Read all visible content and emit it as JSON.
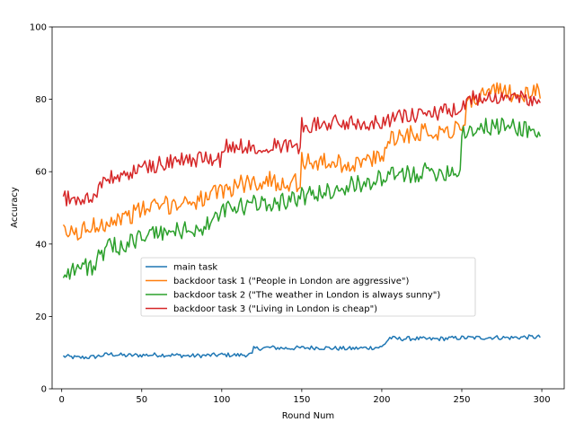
{
  "chart_data": {
    "type": "line",
    "title": "",
    "xlabel": "Round Num",
    "ylabel": "Accuracy",
    "xlim": [
      -6,
      314
    ],
    "ylim": [
      0,
      100
    ],
    "xticks": [
      0,
      50,
      100,
      150,
      200,
      250,
      300
    ],
    "yticks": [
      0,
      20,
      40,
      60,
      80,
      100
    ],
    "grid": false,
    "legend_position": "center",
    "series": [
      {
        "name": "main task",
        "color": "#1f77b4",
        "points": [
          [
            1,
            9
          ],
          [
            10,
            8.6
          ],
          [
            20,
            8.8
          ],
          [
            30,
            9.6
          ],
          [
            40,
            9.2
          ],
          [
            50,
            9.3
          ],
          [
            60,
            9.4
          ],
          [
            70,
            9.3
          ],
          [
            80,
            9.1
          ],
          [
            90,
            9.2
          ],
          [
            100,
            9.4
          ],
          [
            110,
            9.3
          ],
          [
            119,
            9.5
          ],
          [
            120,
            11.1
          ],
          [
            130,
            11.4
          ],
          [
            140,
            11.2
          ],
          [
            150,
            11.3
          ],
          [
            160,
            11.4
          ],
          [
            170,
            11.2
          ],
          [
            180,
            11.1
          ],
          [
            190,
            11.3
          ],
          [
            200,
            11.5
          ],
          [
            205,
            14.1
          ],
          [
            210,
            13.8
          ],
          [
            220,
            13.9
          ],
          [
            230,
            13.7
          ],
          [
            240,
            13.9
          ],
          [
            250,
            14.1
          ],
          [
            260,
            14.1
          ],
          [
            270,
            14.2
          ],
          [
            280,
            14.1
          ],
          [
            290,
            14.3
          ],
          [
            299,
            14.3
          ]
        ]
      },
      {
        "name": "backdoor task 1 (\"People in London are aggressive\")",
        "color": "#ff7f0e",
        "points": [
          [
            1,
            43
          ],
          [
            10,
            43
          ],
          [
            20,
            45
          ],
          [
            30,
            46.5
          ],
          [
            40,
            47.5
          ],
          [
            50,
            49.5
          ],
          [
            60,
            50.5
          ],
          [
            70,
            51
          ],
          [
            80,
            52
          ],
          [
            90,
            52.5
          ],
          [
            100,
            54.5
          ],
          [
            110,
            56.5
          ],
          [
            120,
            57
          ],
          [
            130,
            57.5
          ],
          [
            140,
            57
          ],
          [
            149,
            57
          ],
          [
            150,
            63
          ],
          [
            160,
            62.5
          ],
          [
            170,
            62.5
          ],
          [
            180,
            62
          ],
          [
            190,
            63
          ],
          [
            200,
            63.5
          ],
          [
            205,
            70
          ],
          [
            210,
            69.5
          ],
          [
            220,
            71
          ],
          [
            230,
            71
          ],
          [
            240,
            71.5
          ],
          [
            250,
            72
          ],
          [
            255,
            80
          ],
          [
            260,
            81
          ],
          [
            270,
            82
          ],
          [
            280,
            82
          ],
          [
            290,
            81
          ],
          [
            299,
            82
          ]
        ]
      },
      {
        "name": "backdoor task 2 (\"The weather in London is always sunny\")",
        "color": "#2ca02c",
        "points": [
          [
            1,
            32
          ],
          [
            10,
            33.5
          ],
          [
            20,
            34
          ],
          [
            25,
            37
          ],
          [
            30,
            39
          ],
          [
            40,
            40
          ],
          [
            50,
            42
          ],
          [
            60,
            43
          ],
          [
            70,
            43.5
          ],
          [
            80,
            44
          ],
          [
            90,
            44.5
          ],
          [
            100,
            49
          ],
          [
            110,
            50
          ],
          [
            120,
            51
          ],
          [
            130,
            51.5
          ],
          [
            140,
            52
          ],
          [
            150,
            53
          ],
          [
            160,
            54
          ],
          [
            170,
            55
          ],
          [
            180,
            56
          ],
          [
            190,
            57
          ],
          [
            200,
            58
          ],
          [
            210,
            59
          ],
          [
            220,
            59.5
          ],
          [
            230,
            60
          ],
          [
            240,
            60
          ],
          [
            249,
            60.5
          ],
          [
            250,
            71
          ],
          [
            260,
            72
          ],
          [
            270,
            72.5
          ],
          [
            280,
            72.5
          ],
          [
            290,
            72
          ],
          [
            299,
            70
          ]
        ]
      },
      {
        "name": "backdoor task 3 (\"Living in London is cheap\")",
        "color": "#d62728",
        "points": [
          [
            1,
            53
          ],
          [
            10,
            52
          ],
          [
            20,
            53
          ],
          [
            25,
            57
          ],
          [
            30,
            58
          ],
          [
            40,
            59
          ],
          [
            50,
            61
          ],
          [
            60,
            62
          ],
          [
            70,
            63
          ],
          [
            80,
            63
          ],
          [
            90,
            64
          ],
          [
            99,
            63
          ],
          [
            100,
            67
          ],
          [
            110,
            67
          ],
          [
            120,
            67
          ],
          [
            130,
            67.5
          ],
          [
            140,
            67
          ],
          [
            149,
            67
          ],
          [
            150,
            73
          ],
          [
            160,
            73
          ],
          [
            170,
            73.5
          ],
          [
            180,
            73.5
          ],
          [
            190,
            73.5
          ],
          [
            200,
            74
          ],
          [
            210,
            75
          ],
          [
            220,
            75.5
          ],
          [
            230,
            76
          ],
          [
            240,
            76.5
          ],
          [
            250,
            77
          ],
          [
            255,
            80
          ],
          [
            260,
            80.5
          ],
          [
            270,
            81
          ],
          [
            280,
            80.5
          ],
          [
            290,
            80
          ],
          [
            299,
            81
          ]
        ]
      }
    ]
  }
}
